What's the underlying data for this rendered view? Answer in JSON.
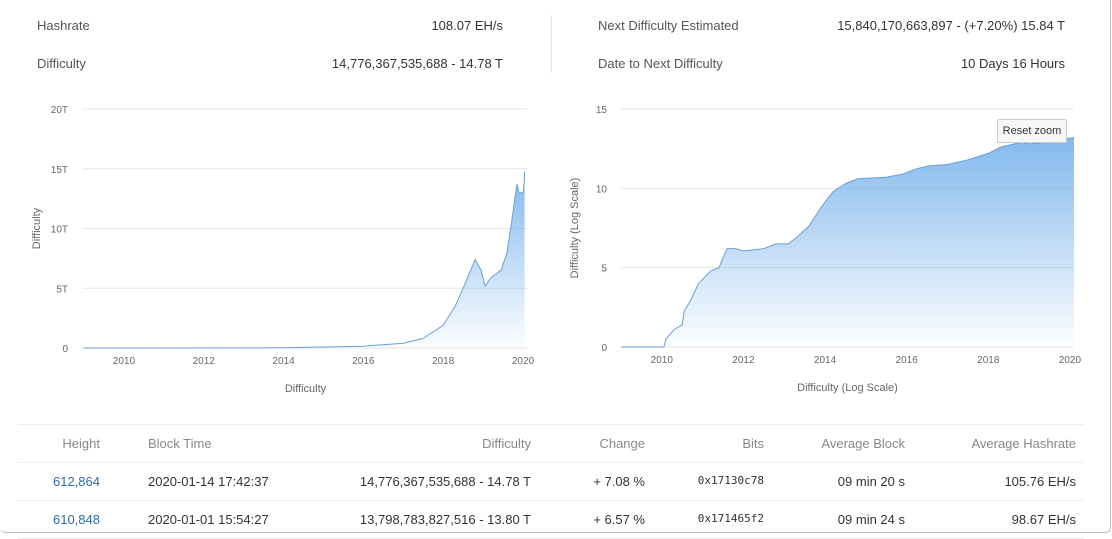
{
  "stats": {
    "hashrate_label": "Hashrate",
    "hashrate_value": "108.07 EH/s",
    "difficulty_label": "Difficulty",
    "difficulty_value": "14,776,367,535,688 - 14.78 T",
    "next_label": "Next Difficulty Estimated",
    "next_value": "15,840,170,663,897 - (+7.20%) 15.84 T",
    "date_label": "Date to Next Difficulty",
    "date_value": "10 Days 16 Hours"
  },
  "reset_zoom": "Reset zoom",
  "chart_data": [
    {
      "type": "area",
      "xlabel": "Difficulty",
      "ylabel": "Difficulty",
      "x_ticks": [
        "2010",
        "2012",
        "2014",
        "2016",
        "2018",
        "2020"
      ],
      "y_ticks": [
        "0",
        "5T",
        "10T",
        "15T",
        "20T"
      ],
      "xlim": [
        2009.0,
        2020.1
      ],
      "ylim": [
        0,
        20
      ],
      "y_unit": "T",
      "grid": true,
      "color": "#7cb5ec",
      "x": [
        2009.0,
        2014.0,
        2016.0,
        2017.0,
        2017.5,
        2018.0,
        2018.3,
        2018.5,
        2018.8,
        2018.95,
        2019.05,
        2019.2,
        2019.45,
        2019.6,
        2019.7,
        2019.8,
        2019.85,
        2019.9,
        2020.0,
        2020.03,
        2020.04
      ],
      "y": [
        0,
        0.02,
        0.15,
        0.4,
        0.8,
        1.9,
        3.5,
        5.0,
        7.4,
        6.5,
        5.2,
        5.9,
        6.5,
        8.0,
        10.2,
        12.6,
        13.7,
        13.0,
        13.0,
        13.8,
        14.78
      ]
    },
    {
      "type": "area",
      "xlabel": "Difficulty (Log Scale)",
      "ylabel": "Difficulty (Log Scale)",
      "x_ticks": [
        "2010",
        "2012",
        "2014",
        "2016",
        "2018",
        "2020"
      ],
      "y_ticks": [
        "0",
        "5",
        "10",
        "15"
      ],
      "xlim": [
        2009.0,
        2020.1
      ],
      "ylim": [
        0,
        15
      ],
      "grid": true,
      "color": "#7cb5ec",
      "x": [
        2009.0,
        2010.05,
        2010.1,
        2010.3,
        2010.5,
        2010.55,
        2010.7,
        2010.9,
        2011.2,
        2011.4,
        2011.6,
        2011.8,
        2012.0,
        2012.5,
        2012.8,
        2013.1,
        2013.3,
        2013.6,
        2013.9,
        2014.2,
        2014.5,
        2014.8,
        2015.5,
        2015.9,
        2016.2,
        2016.5,
        2017.0,
        2017.5,
        2018.0,
        2018.3,
        2018.8,
        2019.0,
        2019.5,
        2019.8,
        2020.1
      ],
      "y": [
        0,
        0,
        0.5,
        1.1,
        1.4,
        2.3,
        2.9,
        4.0,
        4.8,
        5.0,
        6.2,
        6.2,
        6.05,
        6.2,
        6.5,
        6.5,
        6.9,
        7.6,
        8.8,
        9.8,
        10.3,
        10.6,
        10.7,
        10.9,
        11.2,
        11.4,
        11.5,
        11.8,
        12.2,
        12.6,
        12.9,
        12.8,
        12.9,
        13.1,
        13.2
      ]
    }
  ],
  "table": {
    "headers": [
      "Height",
      "Block Time",
      "Difficulty",
      "Change",
      "Bits",
      "Average Block",
      "Average Hashrate"
    ],
    "rows": [
      [
        "612,864",
        "2020-01-14 17:42:37",
        "14,776,367,535,688 - 14.78 T",
        "+ 7.08 %",
        "0x17130c78",
        "09 min 20 s",
        "105.76 EH/s"
      ],
      [
        "610,848",
        "2020-01-01 15:54:27",
        "13,798,783,827,516 - 13.80 T",
        "+ 6.57 %",
        "0x171465f2",
        "09 min 24 s",
        "98.67 EH/s"
      ]
    ]
  }
}
